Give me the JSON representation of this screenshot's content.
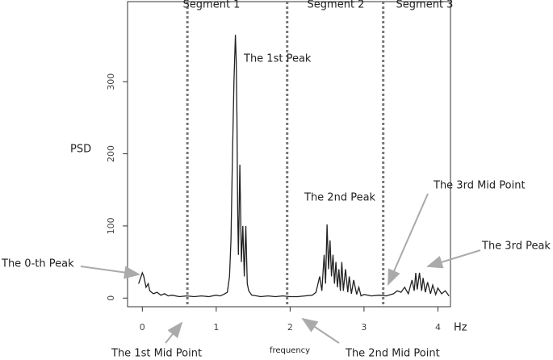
{
  "chart_data": {
    "type": "line",
    "y_label": "PSD",
    "x_label": "frequency",
    "x_unit": "Hz",
    "segment_labels": [
      "Segment 1",
      "Segment 2",
      "Segment 3"
    ],
    "annotations": [
      "The 1st Peak",
      "The 2nd Peak",
      "The 3rd Mid Point",
      "The 3rd Peak",
      "The 0-th Peak",
      "The 1st Mid Point",
      "The 2nd Mid Point"
    ],
    "midpoints": [
      0.61,
      1.96,
      3.26
    ],
    "x": [
      -0.05,
      0,
      0.02,
      0.05,
      0.08,
      0.1,
      0.15,
      0.2,
      0.25,
      0.3,
      0.35,
      0.4,
      0.5,
      0.6,
      0.7,
      0.8,
      0.9,
      1.0,
      1.05,
      1.1,
      1.15,
      1.18,
      1.2,
      1.22,
      1.24,
      1.26,
      1.27,
      1.28,
      1.29,
      1.3,
      1.32,
      1.34,
      1.36,
      1.38,
      1.4,
      1.42,
      1.44,
      1.48,
      1.55,
      1.6,
      1.7,
      1.8,
      1.9,
      2.0,
      2.1,
      2.2,
      2.3,
      2.35,
      2.4,
      2.43,
      2.46,
      2.48,
      2.5,
      2.52,
      2.54,
      2.56,
      2.58,
      2.6,
      2.62,
      2.64,
      2.66,
      2.68,
      2.7,
      2.72,
      2.75,
      2.78,
      2.8,
      2.83,
      2.86,
      2.9,
      2.93,
      2.96,
      3.0,
      3.1,
      3.2,
      3.3,
      3.4,
      3.45,
      3.5,
      3.55,
      3.6,
      3.65,
      3.68,
      3.7,
      3.72,
      3.75,
      3.78,
      3.8,
      3.83,
      3.86,
      3.9,
      3.93,
      3.97,
      4.0,
      4.05,
      4.1,
      4.15
    ],
    "series": [
      {
        "color": "#222222",
        "values": [
          20,
          35,
          30,
          15,
          20,
          10,
          6,
          8,
          4,
          6,
          3,
          4,
          2,
          3,
          2,
          3,
          2,
          4,
          3,
          5,
          8,
          30,
          80,
          200,
          300,
          365,
          330,
          250,
          120,
          60,
          185,
          50,
          100,
          30,
          100,
          20,
          10,
          4,
          3,
          2,
          3,
          2,
          3,
          2,
          2,
          3,
          4,
          8,
          30,
          10,
          60,
          20,
          102,
          40,
          80,
          30,
          60,
          20,
          50,
          15,
          40,
          10,
          50,
          10,
          40,
          8,
          30,
          6,
          25,
          5,
          15,
          3,
          5,
          3,
          4,
          3,
          6,
          10,
          8,
          15,
          6,
          25,
          10,
          35,
          12,
          35,
          10,
          28,
          8,
          22,
          6,
          18,
          5,
          14,
          6,
          10,
          3
        ]
      }
    ],
    "xlim": [
      -0.2,
      4.17
    ],
    "ylim": [
      -12,
      411
    ],
    "xticks": [
      0,
      1,
      2,
      3,
      4
    ],
    "yticks": [
      0,
      100,
      200,
      300
    ]
  }
}
